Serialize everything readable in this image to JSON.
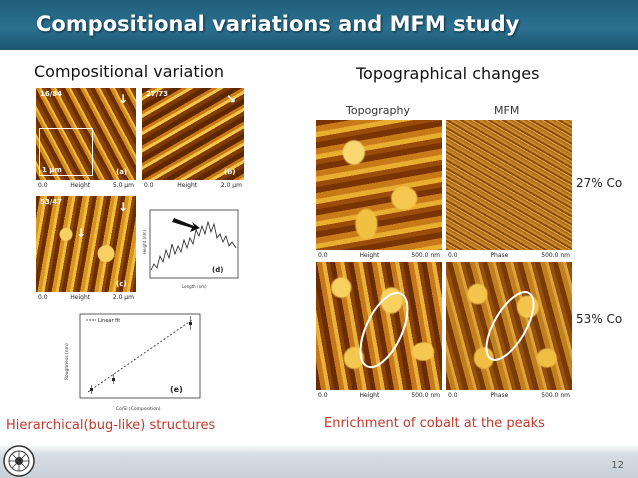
{
  "slide": {
    "title": "Compositional variations and MFM study",
    "left_heading": "Compositional variation",
    "right_heading": "Topographical changes",
    "left_caption": "Hierarchical(bug-like) structures",
    "right_caption": "Enrichment of cobalt at the peaks",
    "page_number": "12"
  },
  "left_panels": {
    "a": {
      "corner": "16/84",
      "tag": "(a)",
      "scale": "1 μm",
      "bar_left": "0.0",
      "bar_mid": "Height",
      "bar_right": "5.0 μm"
    },
    "b": {
      "corner": "27/73",
      "tag": "(b)",
      "bar_left": "0.0",
      "bar_mid": "Height",
      "bar_right": "2.0 μm"
    },
    "c": {
      "corner": "53/47",
      "tag": "(c)",
      "bar_left": "0.0",
      "bar_mid": "Height",
      "bar_right": "2.0 μm"
    },
    "d": {
      "tag": "(d)",
      "xlabel": "Length (nm)",
      "ylabel": "Height (nm)"
    },
    "e": {
      "tag": "(e)",
      "legend": "Linear fit",
      "xlabel": "Co/Si (Composition)",
      "ylabel": "Roughness (nm)"
    }
  },
  "right_panels": {
    "col_topography": "Topography",
    "col_mfm": "MFM",
    "row1_label": "27% Co",
    "row2_label": "53% Co",
    "topo1": {
      "bar_left": "0.0",
      "bar_mid": "Height",
      "bar_right": "500.0 nm"
    },
    "mfm1": {
      "bar_left": "0.0",
      "bar_mid": "Phase",
      "bar_right": "500.0 nm"
    },
    "topo2": {
      "bar_left": "0.0",
      "bar_mid": "Height",
      "bar_right": "500.0 nm"
    },
    "mfm2": {
      "bar_left": "0.0",
      "bar_mid": "Phase",
      "bar_right": "500.0 nm"
    }
  },
  "colors": {
    "title_bar": "#2b7090",
    "caption": "#c0392b",
    "afm_dark": "#5a2500",
    "afm_light": "#f2c240"
  }
}
